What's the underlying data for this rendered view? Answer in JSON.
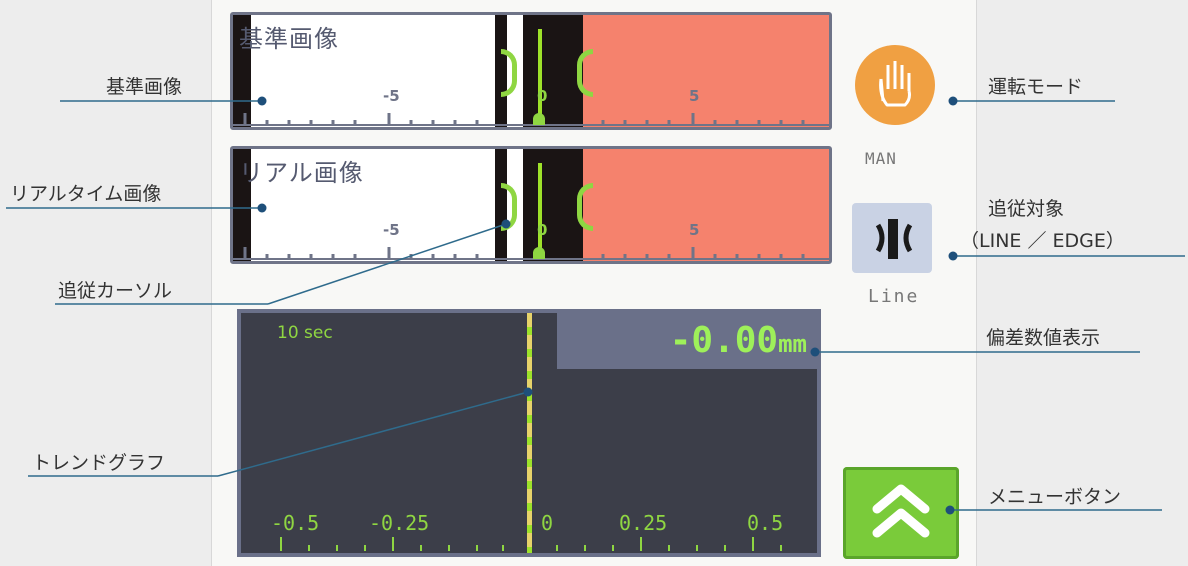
{
  "panels": {
    "reference": {
      "title": "基準画像",
      "tick_neg": "-5",
      "tick_zero": "0",
      "tick_pos": "5"
    },
    "realtime": {
      "title": "リアル画像",
      "tick_neg": "-5",
      "tick_zero": "0",
      "tick_pos": "5"
    }
  },
  "trend": {
    "time_window": "10 sec",
    "deviation_value": "-0.00",
    "deviation_unit": "mm",
    "axis_labels": [
      "-0.5",
      "-0.25",
      "0",
      "0.25",
      "0.5"
    ]
  },
  "controls": {
    "mode_label": "MAN",
    "mode_icon": "hand-icon",
    "track_label": "Line",
    "track_icon": "line-track-icon",
    "menu_icon": "double-chevron-up-icon"
  },
  "callouts": {
    "reference_image": "基準画像",
    "realtime_image": "リアルタイム画像",
    "tracking_cursor": "追従カーソル",
    "trend_graph": "トレンドグラフ",
    "operation_mode": "運転モード",
    "tracking_target_line1": "追従対象",
    "tracking_target_line2": "（LINE ／ EDGE）",
    "deviation_display": "偏差数値表示",
    "menu_button": "メニューボタン"
  },
  "colors": {
    "accent_green": "#8fd642",
    "mode_orange": "#f0a042",
    "edge_red": "#f5826d",
    "frame_blue": "#6f7488"
  }
}
